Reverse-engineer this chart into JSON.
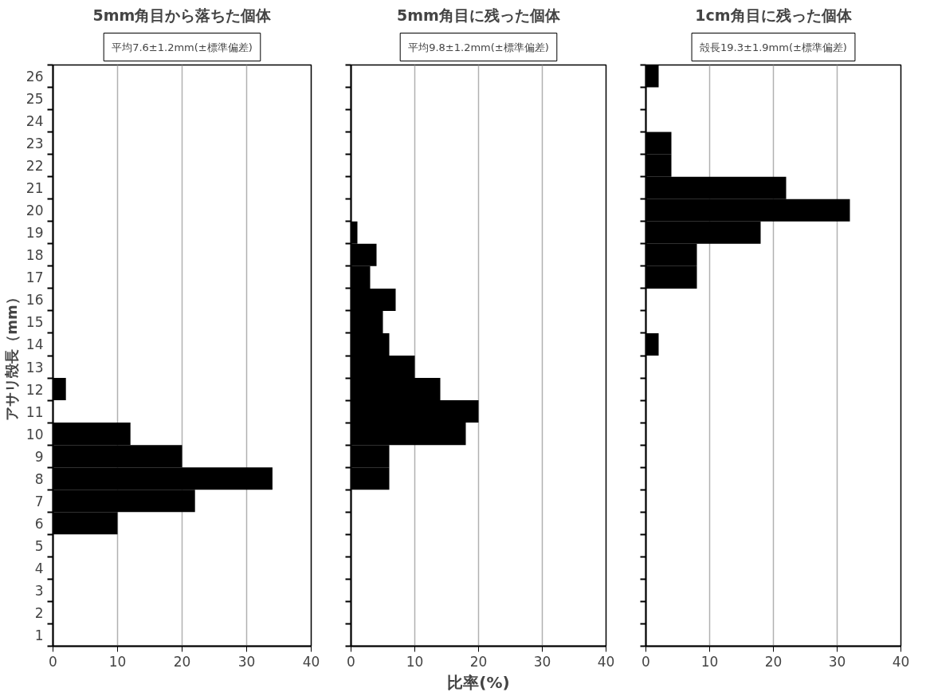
{
  "chart_data": [
    {
      "type": "bar",
      "orientation": "horizontal",
      "title": "5mm角目から落ちた個体",
      "subtitle": "平均7.6±1.2mm(±標準偏差)",
      "ylabel": "アサリ殻長（mm）",
      "categories": [
        "26",
        "25",
        "24",
        "23",
        "22",
        "21",
        "20",
        "19",
        "18",
        "17",
        "16",
        "15",
        "14",
        "13",
        "12",
        "11",
        "10",
        "9",
        "8",
        "7",
        "6",
        "5",
        "4",
        "3",
        "2",
        "1"
      ],
      "series": [
        {
          "color": "#000000",
          "values": [
            0,
            0,
            0,
            0,
            0,
            0,
            0,
            0,
            0,
            0,
            0,
            0,
            0,
            0,
            2,
            0,
            12,
            20,
            34,
            22,
            10,
            0,
            0,
            0,
            0,
            0
          ]
        }
      ],
      "xlim": [
        0,
        40
      ],
      "xticks": [
        0,
        10,
        20,
        30,
        40
      ],
      "grid": "x"
    },
    {
      "type": "bar",
      "orientation": "horizontal",
      "title": "5mm角目に残った個体",
      "subtitle": "平均9.8±1.2mm(±標準偏差)",
      "xlabel": "比率(%)",
      "categories": [
        "26",
        "25",
        "24",
        "23",
        "22",
        "21",
        "20",
        "19",
        "18",
        "17",
        "16",
        "15",
        "14",
        "13",
        "12",
        "11",
        "10",
        "9",
        "8",
        "7",
        "6",
        "5",
        "4",
        "3",
        "2",
        "1"
      ],
      "series": [
        {
          "color": "#000000",
          "values": [
            0,
            0,
            0,
            0,
            0,
            0,
            0,
            1,
            4,
            3,
            7,
            5,
            6,
            10,
            14,
            20,
            18,
            6,
            6,
            0,
            0,
            0,
            0,
            0,
            0,
            0
          ]
        }
      ],
      "xlim": [
        0,
        40
      ],
      "xticks": [
        0,
        10,
        20,
        30,
        40
      ],
      "grid": "x",
      "tick_labels": "x"
    },
    {
      "type": "bar",
      "orientation": "horizontal",
      "title": "1cm角目に残った個体",
      "subtitle": "殻長19.3±1.9mm(±標準偏差)",
      "categories": [
        "26",
        "25",
        "24",
        "23",
        "22",
        "21",
        "20",
        "19",
        "18",
        "17",
        "16",
        "15",
        "14",
        "13",
        "12",
        "11",
        "10",
        "9",
        "8",
        "7",
        "6",
        "5",
        "4",
        "3",
        "2",
        "1"
      ],
      "series": [
        {
          "color": "#000000",
          "values": [
            2,
            0,
            0,
            4,
            4,
            22,
            32,
            18,
            8,
            8,
            0,
            0,
            2,
            0,
            0,
            0,
            0,
            0,
            0,
            0,
            0,
            0,
            0,
            0,
            0,
            0
          ]
        }
      ],
      "xlim": [
        0,
        40
      ],
      "xticks": [
        0,
        10,
        20,
        30,
        40
      ],
      "grid": "x",
      "tick_labels": "x"
    }
  ]
}
